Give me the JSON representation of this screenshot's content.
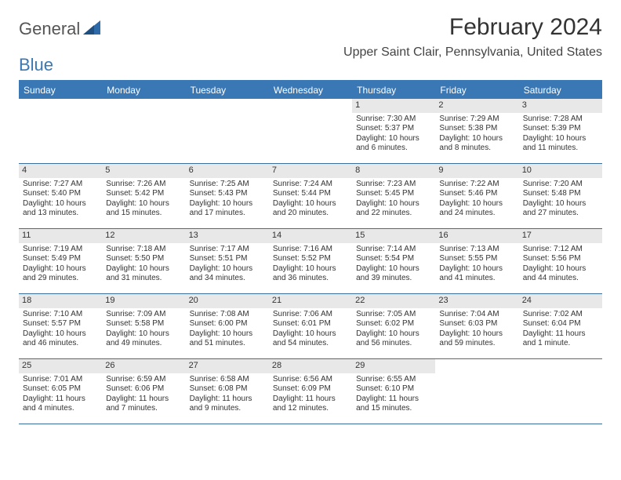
{
  "logo": {
    "text_gray": "General",
    "text_blue": "Blue"
  },
  "title": "February 2024",
  "location": "Upper Saint Clair, Pennsylvania, United States",
  "header_color": "#3a78b5",
  "day_headers": [
    "Sunday",
    "Monday",
    "Tuesday",
    "Wednesday",
    "Thursday",
    "Friday",
    "Saturday"
  ],
  "weeks": [
    [
      {
        "n": "",
        "sr": "",
        "ss": "",
        "dl": ""
      },
      {
        "n": "",
        "sr": "",
        "ss": "",
        "dl": ""
      },
      {
        "n": "",
        "sr": "",
        "ss": "",
        "dl": ""
      },
      {
        "n": "",
        "sr": "",
        "ss": "",
        "dl": ""
      },
      {
        "n": "1",
        "sr": "Sunrise: 7:30 AM",
        "ss": "Sunset: 5:37 PM",
        "dl": "Daylight: 10 hours and 6 minutes."
      },
      {
        "n": "2",
        "sr": "Sunrise: 7:29 AM",
        "ss": "Sunset: 5:38 PM",
        "dl": "Daylight: 10 hours and 8 minutes."
      },
      {
        "n": "3",
        "sr": "Sunrise: 7:28 AM",
        "ss": "Sunset: 5:39 PM",
        "dl": "Daylight: 10 hours and 11 minutes."
      }
    ],
    [
      {
        "n": "4",
        "sr": "Sunrise: 7:27 AM",
        "ss": "Sunset: 5:40 PM",
        "dl": "Daylight: 10 hours and 13 minutes."
      },
      {
        "n": "5",
        "sr": "Sunrise: 7:26 AM",
        "ss": "Sunset: 5:42 PM",
        "dl": "Daylight: 10 hours and 15 minutes."
      },
      {
        "n": "6",
        "sr": "Sunrise: 7:25 AM",
        "ss": "Sunset: 5:43 PM",
        "dl": "Daylight: 10 hours and 17 minutes."
      },
      {
        "n": "7",
        "sr": "Sunrise: 7:24 AM",
        "ss": "Sunset: 5:44 PM",
        "dl": "Daylight: 10 hours and 20 minutes."
      },
      {
        "n": "8",
        "sr": "Sunrise: 7:23 AM",
        "ss": "Sunset: 5:45 PM",
        "dl": "Daylight: 10 hours and 22 minutes."
      },
      {
        "n": "9",
        "sr": "Sunrise: 7:22 AM",
        "ss": "Sunset: 5:46 PM",
        "dl": "Daylight: 10 hours and 24 minutes."
      },
      {
        "n": "10",
        "sr": "Sunrise: 7:20 AM",
        "ss": "Sunset: 5:48 PM",
        "dl": "Daylight: 10 hours and 27 minutes."
      }
    ],
    [
      {
        "n": "11",
        "sr": "Sunrise: 7:19 AM",
        "ss": "Sunset: 5:49 PM",
        "dl": "Daylight: 10 hours and 29 minutes."
      },
      {
        "n": "12",
        "sr": "Sunrise: 7:18 AM",
        "ss": "Sunset: 5:50 PM",
        "dl": "Daylight: 10 hours and 31 minutes."
      },
      {
        "n": "13",
        "sr": "Sunrise: 7:17 AM",
        "ss": "Sunset: 5:51 PM",
        "dl": "Daylight: 10 hours and 34 minutes."
      },
      {
        "n": "14",
        "sr": "Sunrise: 7:16 AM",
        "ss": "Sunset: 5:52 PM",
        "dl": "Daylight: 10 hours and 36 minutes."
      },
      {
        "n": "15",
        "sr": "Sunrise: 7:14 AM",
        "ss": "Sunset: 5:54 PM",
        "dl": "Daylight: 10 hours and 39 minutes."
      },
      {
        "n": "16",
        "sr": "Sunrise: 7:13 AM",
        "ss": "Sunset: 5:55 PM",
        "dl": "Daylight: 10 hours and 41 minutes."
      },
      {
        "n": "17",
        "sr": "Sunrise: 7:12 AM",
        "ss": "Sunset: 5:56 PM",
        "dl": "Daylight: 10 hours and 44 minutes."
      }
    ],
    [
      {
        "n": "18",
        "sr": "Sunrise: 7:10 AM",
        "ss": "Sunset: 5:57 PM",
        "dl": "Daylight: 10 hours and 46 minutes."
      },
      {
        "n": "19",
        "sr": "Sunrise: 7:09 AM",
        "ss": "Sunset: 5:58 PM",
        "dl": "Daylight: 10 hours and 49 minutes."
      },
      {
        "n": "20",
        "sr": "Sunrise: 7:08 AM",
        "ss": "Sunset: 6:00 PM",
        "dl": "Daylight: 10 hours and 51 minutes."
      },
      {
        "n": "21",
        "sr": "Sunrise: 7:06 AM",
        "ss": "Sunset: 6:01 PM",
        "dl": "Daylight: 10 hours and 54 minutes."
      },
      {
        "n": "22",
        "sr": "Sunrise: 7:05 AM",
        "ss": "Sunset: 6:02 PM",
        "dl": "Daylight: 10 hours and 56 minutes."
      },
      {
        "n": "23",
        "sr": "Sunrise: 7:04 AM",
        "ss": "Sunset: 6:03 PM",
        "dl": "Daylight: 10 hours and 59 minutes."
      },
      {
        "n": "24",
        "sr": "Sunrise: 7:02 AM",
        "ss": "Sunset: 6:04 PM",
        "dl": "Daylight: 11 hours and 1 minute."
      }
    ],
    [
      {
        "n": "25",
        "sr": "Sunrise: 7:01 AM",
        "ss": "Sunset: 6:05 PM",
        "dl": "Daylight: 11 hours and 4 minutes."
      },
      {
        "n": "26",
        "sr": "Sunrise: 6:59 AM",
        "ss": "Sunset: 6:06 PM",
        "dl": "Daylight: 11 hours and 7 minutes."
      },
      {
        "n": "27",
        "sr": "Sunrise: 6:58 AM",
        "ss": "Sunset: 6:08 PM",
        "dl": "Daylight: 11 hours and 9 minutes."
      },
      {
        "n": "28",
        "sr": "Sunrise: 6:56 AM",
        "ss": "Sunset: 6:09 PM",
        "dl": "Daylight: 11 hours and 12 minutes."
      },
      {
        "n": "29",
        "sr": "Sunrise: 6:55 AM",
        "ss": "Sunset: 6:10 PM",
        "dl": "Daylight: 11 hours and 15 minutes."
      },
      {
        "n": "",
        "sr": "",
        "ss": "",
        "dl": ""
      },
      {
        "n": "",
        "sr": "",
        "ss": "",
        "dl": ""
      }
    ]
  ]
}
